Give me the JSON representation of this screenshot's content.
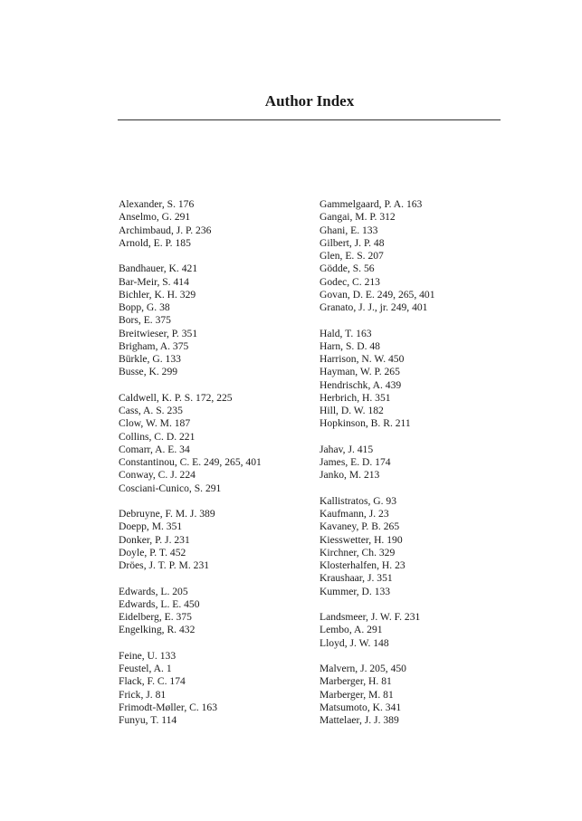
{
  "title": "Author Index",
  "columns": [
    [
      [
        "Alexander, S.  176",
        "Anselmo, G.  291",
        "Archimbaud, J. P.  236",
        "Arnold, E. P.  185"
      ],
      [
        "Bandhauer, K.  421",
        "Bar-Meir, S.  414",
        "Bichler, K. H.  329",
        "Bopp, G.  38",
        "Bors, E.  375",
        "Breitwieser, P.  351",
        "Brigham, A.  375",
        "Bürkle, G.  133",
        "Busse, K.  299"
      ],
      [
        "Caldwell, K. P. S.  172, 225",
        "Cass, A. S.  235",
        "Clow, W. M.  187",
        "Collins, C. D.  221",
        "Comarr, A. E.  34",
        "Constantinou, C. E.  249, 265, 401",
        "Conway, C. J.  224",
        "Cosciani-Cunico, S.  291"
      ],
      [
        "Debruyne, F. M. J.  389",
        "Doepp, M.  351",
        "Donker, P. J.  231",
        "Doyle, P. T.  452",
        "Dröes, J. T. P. M.  231"
      ],
      [
        "Edwards, L.  205",
        "Edwards, L. E.  450",
        "Eidelberg, E.  375",
        "Engelking, R.  432"
      ],
      [
        "Feine, U.  133",
        "Feustel, A.  1",
        "Flack, F. C.  174",
        "Frick, J.  81",
        "Frimodt-Møller, C.  163",
        "Funyu, T.  114"
      ]
    ],
    [
      [
        "Gammelgaard, P. A.  163",
        "Gangai, M. P.  312",
        "Ghani, E.  133",
        "Gilbert, J. P.  48",
        "Glen, E. S.  207",
        "Gödde, S.  56",
        "Godec, C.  213",
        "Govan, D. E.  249, 265, 401",
        "Granato, J. J., jr.  249, 401"
      ],
      [
        "Hald, T.  163",
        "Harn, S. D.  48",
        "Harrison, N. W.  450",
        "Hayman, W. P.  265",
        "Hendrischk, A.  439",
        "Herbrich, H.  351",
        "Hill, D. W.  182",
        "Hopkinson, B. R.  211"
      ],
      [
        "Jahav, J.  415",
        "James, E. D.  174",
        "Janko, M.  213"
      ],
      [
        "Kallistratos, G.  93",
        "Kaufmann, J.  23",
        "Kavaney, P. B.  265",
        "Kiesswetter, H.  190",
        "Kirchner, Ch.  329",
        "Klosterhalfen, H.  23",
        "Kraushaar, J.  351",
        "Kummer, D.  133"
      ],
      [
        "Landsmeer, J. W. F.  231",
        "Lembo, A.  291",
        "Lloyd, J. W.  148"
      ],
      [
        "Malvern, J.  205, 450",
        "Marberger, H.  81",
        "Marberger, M.  81",
        "Matsumoto, K.  341",
        "Mattelaer, J. J.  389"
      ]
    ]
  ]
}
